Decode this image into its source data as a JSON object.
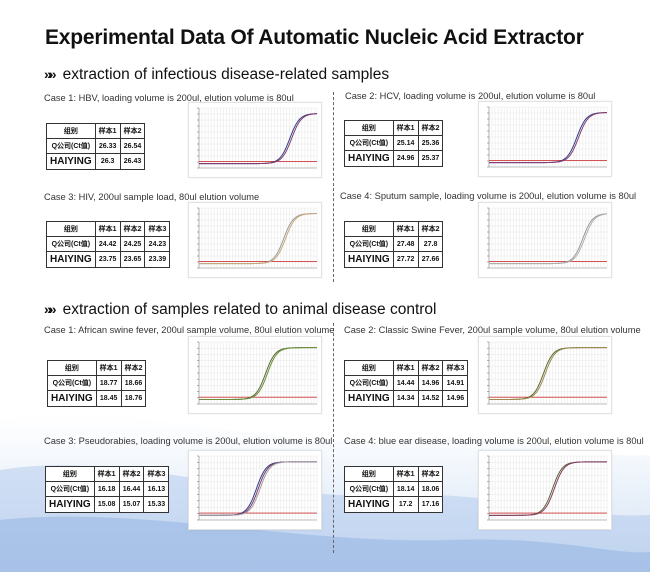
{
  "title": "Experimental Data Of Automatic Nucleic Acid Extractor",
  "section_marker": "»»",
  "sections": [
    {
      "heading": "extraction of infectious disease-related samples",
      "cases": [
        {
          "label": "Case 1: HBV, loading volume is 200ul, elution volume is 80ul",
          "table": {
            "headers": [
              "组别",
              "样本1",
              "样本2"
            ],
            "rows": [
              [
                "Q公司(Ct值)",
                "26.33",
                "26.54"
              ],
              [
                "HAIYING",
                "26.3",
                "26.43"
              ]
            ]
          }
        },
        {
          "label": "Case 2: HCV, loading volume is 200ul, elution volume is 80ul",
          "table": {
            "headers": [
              "组别",
              "样本1",
              "样本2"
            ],
            "rows": [
              [
                "Q公司(Ct值)",
                "25.14",
                "25.36"
              ],
              [
                "HAIYING",
                "24.96",
                "25.37"
              ]
            ]
          }
        },
        {
          "label": "Case 3: HIV, 200ul sample load, 80ul elution volume",
          "table": {
            "headers": [
              "组别",
              "样本1",
              "样本2",
              "样本3"
            ],
            "rows": [
              [
                "Q公司(Ct值)",
                "24.42",
                "24.25",
                "24.23"
              ],
              [
                "HAIYING",
                "23.75",
                "23.65",
                "23.39"
              ]
            ]
          }
        },
        {
          "label": "Case 4: Sputum sample, loading volume is 200ul, elution volume is 80ul",
          "table": {
            "headers": [
              "组别",
              "样本1",
              "样本2"
            ],
            "rows": [
              [
                "Q公司(Ct值)",
                "27.48",
                "27.8"
              ],
              [
                "HAIYING",
                "27.72",
                "27.66"
              ]
            ]
          }
        }
      ]
    },
    {
      "heading": "extraction of samples related to animal disease control",
      "cases": [
        {
          "label": "Case 1: African swine fever, 200ul sample volume, 80ul elution volume",
          "table": {
            "headers": [
              "组别",
              "样本1",
              "样本2"
            ],
            "rows": [
              [
                "Q公司(Ct值)",
                "18.77",
                "18.66"
              ],
              [
                "HAIYING",
                "18.45",
                "18.76"
              ]
            ]
          }
        },
        {
          "label": "Case 2: Classic Swine Fever, 200ul sample volume, 80ul elution volume",
          "table": {
            "headers": [
              "组别",
              "样本1",
              "样本2",
              "样本3"
            ],
            "rows": [
              [
                "Q公司(Ct值)",
                "14.44",
                "14.96",
                "14.91"
              ],
              [
                "HAIYING",
                "14.34",
                "14.52",
                "14.96"
              ]
            ]
          }
        },
        {
          "label": "Case 3: Pseudorabies, loading volume is 200ul, elution volume is 80ul",
          "table": {
            "headers": [
              "组别",
              "样本1",
              "样本2",
              "样本3"
            ],
            "rows": [
              [
                "Q公司(Ct值)",
                "16.18",
                "16.44",
                "16.13"
              ],
              [
                "HAIYING",
                "15.08",
                "15.07",
                "15.33"
              ]
            ]
          }
        },
        {
          "label": "Case 4: blue ear disease, loading volume is 200ul, elution volume is 80ul",
          "table": {
            "headers": [
              "组别",
              "样本1",
              "样本2"
            ],
            "rows": [
              [
                "Q公司(Ct值)",
                "18.14",
                "18.06"
              ],
              [
                "HAIYING",
                "17.2",
                "17.16"
              ]
            ]
          }
        }
      ]
    }
  ],
  "chart_data": [
    {
      "type": "line",
      "case": "HBV",
      "x_range": [
        1,
        40
      ],
      "y_range": [
        -0.1,
        1.0
      ],
      "curve_onset_cycle": 26,
      "curve_colors": [
        "#2b3f8c",
        "#8a3a6a"
      ],
      "threshold_color": "#d23c3c"
    },
    {
      "type": "line",
      "case": "HCV",
      "x_range": [
        1,
        40
      ],
      "y_range": [
        -0.1,
        1.0
      ],
      "curve_onset_cycle": 25,
      "curve_colors": [
        "#2b3f8c",
        "#8a3a6a"
      ],
      "threshold_color": "#d23c3c"
    },
    {
      "type": "line",
      "case": "HIV",
      "x_range": [
        1,
        40
      ],
      "y_range": [
        -0.1,
        1.0
      ],
      "curve_onset_cycle": 24,
      "curve_colors": [
        "#9a9a9a",
        "#c8a878"
      ],
      "threshold_color": "#d23c3c"
    },
    {
      "type": "line",
      "case": "Sputum",
      "x_range": [
        1,
        40
      ],
      "y_range": [
        -0.1,
        1.0
      ],
      "curve_onset_cycle": 27,
      "curve_colors": [
        "#9a9a9a",
        "#b0b0b0"
      ],
      "threshold_color": "#d23c3c"
    },
    {
      "type": "line",
      "case": "African swine fever",
      "x_range": [
        1,
        40
      ],
      "y_range": [
        -0.1,
        1.0
      ],
      "curve_onset_cycle": 18,
      "curve_colors": [
        "#556b2f",
        "#6b8e3a"
      ],
      "threshold_color": "#d23c3c"
    },
    {
      "type": "line",
      "case": "Classic Swine Fever",
      "x_range": [
        1,
        40
      ],
      "y_range": [
        -0.1,
        1.0
      ],
      "curve_onset_cycle": 14,
      "curve_colors": [
        "#556b2f",
        "#a08a50"
      ],
      "threshold_color": "#d23c3c"
    },
    {
      "type": "line",
      "case": "Pseudorabies",
      "x_range": [
        1,
        40
      ],
      "y_range": [
        -0.1,
        1.0
      ],
      "curve_onset_cycle": 15,
      "curve_colors": [
        "#2b3f8c",
        "#8a3a6a",
        "#a0a0a0"
      ],
      "threshold_color": "#d23c3c"
    },
    {
      "type": "line",
      "case": "blue ear disease",
      "x_range": [
        1,
        40
      ],
      "y_range": [
        -0.1,
        1.0
      ],
      "curve_onset_cycle": 17,
      "curve_colors": [
        "#556b2f",
        "#8a3a6a"
      ],
      "threshold_color": "#d23c3c"
    }
  ]
}
